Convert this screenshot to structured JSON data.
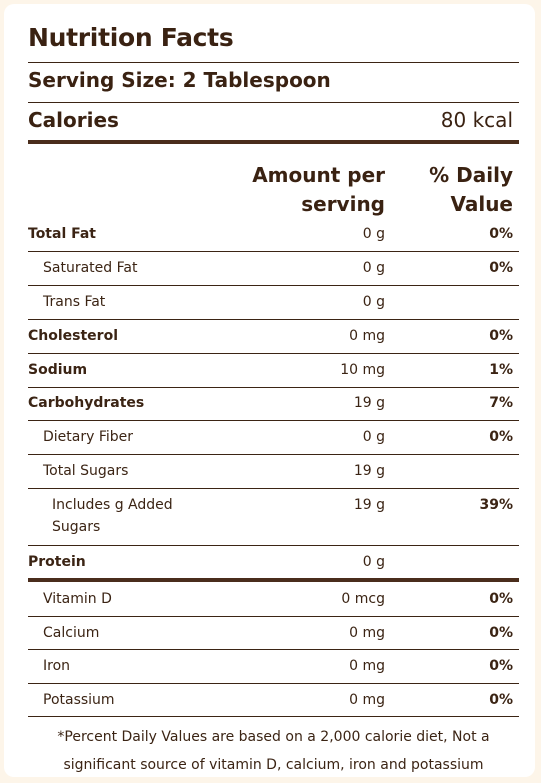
{
  "title": "Nutrition Facts",
  "serving_size": "Serving Size: 2 Tablespoon",
  "calories": {
    "label": "Calories",
    "value": "80 kcal"
  },
  "header": {
    "amount": "Amount per serving",
    "daily": "% Daily Value"
  },
  "rows": [
    {
      "name": "Total Fat",
      "amount": "0 g",
      "dv": "0%"
    },
    {
      "name": "Saturated Fat",
      "amount": "0 g",
      "dv": "0%"
    },
    {
      "name": "Trans Fat",
      "amount": "0 g",
      "dv": ""
    },
    {
      "name": "Cholesterol",
      "amount": "0 mg",
      "dv": "0%"
    },
    {
      "name": "Sodium",
      "amount": "10 mg",
      "dv": "1%"
    },
    {
      "name": "Carbohydrates",
      "amount": "19 g",
      "dv": "7%"
    },
    {
      "name": "Dietary Fiber",
      "amount": "0 g",
      "dv": "0%"
    },
    {
      "name": "Total Sugars",
      "amount": "19 g",
      "dv": ""
    },
    {
      "name": "Includes g Added Sugars",
      "amount": "19 g",
      "dv": "39%"
    },
    {
      "name": "Protein",
      "amount": "0 g",
      "dv": ""
    },
    {
      "name": "Vitamin D",
      "amount": "0 mcg",
      "dv": "0%"
    },
    {
      "name": "Calcium",
      "amount": "0 mg",
      "dv": "0%"
    },
    {
      "name": "Iron",
      "amount": "0 mg",
      "dv": "0%"
    },
    {
      "name": "Potassium",
      "amount": "0 mg",
      "dv": "0%"
    }
  ],
  "footnote": "*Percent Daily Values are based on a 2,000 calorie diet, Not a significant source of vitamin D, calcium, iron and potassium",
  "colors": {
    "text": "#3b2414",
    "background": "#fdf5e9",
    "card": "#ffffff"
  }
}
